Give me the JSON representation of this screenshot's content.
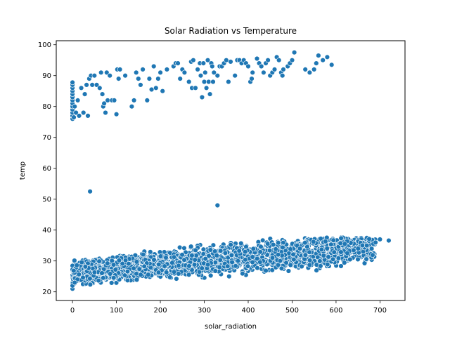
{
  "chart_data": {
    "type": "scatter",
    "title": "Solar Radiation vs Temperature",
    "xlabel": "solar_radiation",
    "ylabel": "temp",
    "xlim": [
      -37,
      757
    ],
    "ylim": [
      17.2,
      101.3
    ],
    "xticks": [
      0,
      100,
      200,
      300,
      400,
      500,
      600,
      700
    ],
    "yticks": [
      20,
      30,
      40,
      50,
      60,
      70,
      80,
      90,
      100
    ],
    "grid": false,
    "marker_color": "#1f77b4",
    "marker_edge_color": "#ffffff",
    "series": [
      {
        "points": [
          [
            0,
            76
          ],
          [
            0,
            77
          ],
          [
            0,
            78
          ],
          [
            0,
            79
          ],
          [
            0,
            80
          ],
          [
            0,
            81
          ],
          [
            0,
            82
          ],
          [
            0,
            83
          ],
          [
            0,
            84
          ],
          [
            0,
            85
          ],
          [
            0,
            86
          ],
          [
            0,
            87
          ],
          [
            0,
            87.8
          ],
          [
            3,
            76.5
          ],
          [
            5,
            80
          ],
          [
            8,
            78
          ],
          [
            12,
            82
          ],
          [
            15,
            77
          ],
          [
            20,
            86
          ],
          [
            25,
            78
          ],
          [
            28,
            84
          ],
          [
            32,
            87
          ],
          [
            35,
            77
          ],
          [
            38,
            89
          ],
          [
            42,
            90
          ],
          [
            45,
            87
          ],
          [
            50,
            90
          ],
          [
            55,
            87
          ],
          [
            62,
            86
          ],
          [
            65,
            91
          ],
          [
            68,
            84
          ],
          [
            70,
            80
          ],
          [
            72,
            81
          ],
          [
            75,
            78
          ],
          [
            78,
            91
          ],
          [
            80,
            82
          ],
          [
            85,
            90
          ],
          [
            90,
            82
          ],
          [
            95,
            82
          ],
          [
            100,
            77.5
          ],
          [
            102,
            92
          ],
          [
            105,
            89
          ],
          [
            108,
            92
          ],
          [
            120,
            90
          ],
          [
            135,
            80
          ],
          [
            140,
            82
          ],
          [
            145,
            91
          ],
          [
            150,
            89
          ],
          [
            155,
            87
          ],
          [
            160,
            92
          ],
          [
            170,
            82
          ],
          [
            175,
            89
          ],
          [
            180,
            85.5
          ],
          [
            185,
            93
          ],
          [
            190,
            86
          ],
          [
            195,
            89
          ],
          [
            200,
            91
          ],
          [
            205,
            85
          ],
          [
            215,
            92
          ],
          [
            230,
            93
          ],
          [
            235,
            94
          ],
          [
            240,
            94
          ],
          [
            245,
            89
          ],
          [
            250,
            92
          ],
          [
            255,
            91
          ],
          [
            265,
            88
          ],
          [
            270,
            94.5
          ],
          [
            272,
            86
          ],
          [
            275,
            95
          ],
          [
            280,
            86
          ],
          [
            285,
            92
          ],
          [
            290,
            94
          ],
          [
            292,
            90
          ],
          [
            295,
            83
          ],
          [
            298,
            94
          ],
          [
            300,
            88
          ],
          [
            302,
            91
          ],
          [
            305,
            86
          ],
          [
            308,
            95
          ],
          [
            310,
            88
          ],
          [
            313,
            84
          ],
          [
            316,
            94
          ],
          [
            318,
            93
          ],
          [
            320,
            88
          ],
          [
            322,
            91
          ],
          [
            330,
            90
          ],
          [
            335,
            93
          ],
          [
            340,
            93
          ],
          [
            345,
            94
          ],
          [
            350,
            95
          ],
          [
            355,
            88
          ],
          [
            360,
            94.5
          ],
          [
            370,
            90
          ],
          [
            375,
            95
          ],
          [
            380,
            95
          ],
          [
            385,
            94
          ],
          [
            390,
            95
          ],
          [
            395,
            94
          ],
          [
            400,
            93
          ],
          [
            405,
            88
          ],
          [
            408,
            89
          ],
          [
            410,
            91
          ],
          [
            420,
            95.5
          ],
          [
            425,
            94
          ],
          [
            430,
            93
          ],
          [
            435,
            91
          ],
          [
            440,
            94
          ],
          [
            445,
            95
          ],
          [
            450,
            90
          ],
          [
            455,
            91
          ],
          [
            460,
            92
          ],
          [
            465,
            96
          ],
          [
            470,
            95
          ],
          [
            475,
            91
          ],
          [
            478,
            90
          ],
          [
            480,
            92
          ],
          [
            490,
            93
          ],
          [
            495,
            94
          ],
          [
            500,
            95
          ],
          [
            505,
            97.5
          ],
          [
            530,
            92
          ],
          [
            540,
            91
          ],
          [
            550,
            92
          ],
          [
            555,
            94
          ],
          [
            560,
            96.5
          ],
          [
            570,
            95
          ],
          [
            580,
            96
          ],
          [
            590,
            93.5
          ],
          [
            40,
            52.5
          ],
          [
            330,
            48
          ]
        ]
      }
    ]
  }
}
